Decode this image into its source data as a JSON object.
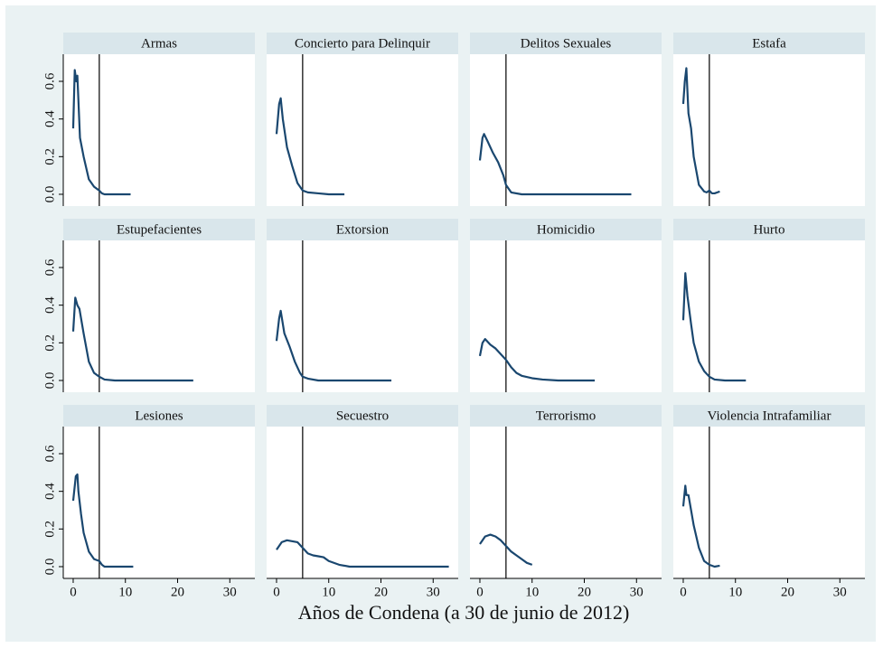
{
  "chart_data": {
    "type": "line",
    "xlabel": "Años de Condena (a 30 de junio de 2012)",
    "xlim": [
      -1.9,
      34.8
    ],
    "ylim": [
      -0.0625,
      0.744
    ],
    "xticks": [
      0,
      10,
      20,
      30
    ],
    "yticks": [
      {
        "value": 0,
        "label": "0.0"
      },
      0.2,
      0.4,
      0.6
    ],
    "reference_line": 5,
    "color": "#1a476f",
    "panels": [
      {
        "title": "Armas",
        "x": [
          0,
          0.3,
          0.6,
          0.8,
          1,
          1.3,
          2,
          3,
          4,
          5,
          5.5,
          6,
          8,
          11
        ],
        "values": [
          0.35,
          0.66,
          0.6,
          0.63,
          0.5,
          0.3,
          0.2,
          0.08,
          0.04,
          0.02,
          0.005,
          0,
          0,
          0
        ]
      },
      {
        "title": "Concierto para Delinquir",
        "x": [
          0,
          0.5,
          0.8,
          1.2,
          2,
          3,
          4,
          5,
          6,
          8,
          10,
          13
        ],
        "values": [
          0.32,
          0.48,
          0.51,
          0.4,
          0.25,
          0.15,
          0.06,
          0.02,
          0.01,
          0.005,
          0,
          0
        ]
      },
      {
        "title": "Delitos Sexuales",
        "x": [
          0,
          0.5,
          0.8,
          1.5,
          2.5,
          3.5,
          4.5,
          5,
          6,
          8,
          15,
          29
        ],
        "values": [
          0.18,
          0.3,
          0.32,
          0.28,
          0.22,
          0.17,
          0.1,
          0.05,
          0.01,
          0,
          0,
          0
        ]
      },
      {
        "title": "Estafa",
        "x": [
          0,
          0.3,
          0.6,
          1,
          1.5,
          2,
          3,
          4,
          4.5,
          5,
          5.5,
          6,
          7
        ],
        "values": [
          0.48,
          0.6,
          0.67,
          0.43,
          0.35,
          0.2,
          0.05,
          0.015,
          0.01,
          0.02,
          0.005,
          0.005,
          0.015
        ]
      },
      {
        "title": "Estupefacientes",
        "x": [
          0,
          0.4,
          0.8,
          1.2,
          2,
          3,
          4,
          5,
          6,
          8,
          15,
          23
        ],
        "values": [
          0.26,
          0.44,
          0.4,
          0.38,
          0.25,
          0.1,
          0.04,
          0.02,
          0.005,
          0,
          0,
          0
        ]
      },
      {
        "title": "Extorsion",
        "x": [
          0,
          0.5,
          0.8,
          1.5,
          2.5,
          3.5,
          4.5,
          5,
          6,
          8,
          15,
          22
        ],
        "values": [
          0.21,
          0.33,
          0.37,
          0.25,
          0.18,
          0.1,
          0.04,
          0.02,
          0.01,
          0,
          0,
          0
        ]
      },
      {
        "title": "Homicidio",
        "x": [
          0,
          0.5,
          1,
          2,
          3,
          4,
          5,
          6,
          7,
          8,
          10,
          12,
          15,
          22
        ],
        "values": [
          0.13,
          0.2,
          0.22,
          0.19,
          0.17,
          0.14,
          0.11,
          0.07,
          0.04,
          0.025,
          0.012,
          0.005,
          0,
          0
        ]
      },
      {
        "title": "Hurto",
        "x": [
          0,
          0.4,
          0.8,
          1.5,
          2,
          3,
          4,
          5,
          6,
          8,
          12
        ],
        "values": [
          0.32,
          0.57,
          0.45,
          0.3,
          0.2,
          0.1,
          0.05,
          0.02,
          0.005,
          0,
          0
        ]
      },
      {
        "title": "Lesiones",
        "x": [
          0,
          0.5,
          0.8,
          1,
          1.5,
          2,
          3,
          4,
          5,
          5.5,
          6,
          8,
          11.5
        ],
        "values": [
          0.35,
          0.48,
          0.49,
          0.4,
          0.28,
          0.18,
          0.08,
          0.04,
          0.03,
          0.01,
          0,
          0,
          0
        ]
      },
      {
        "title": "Secuestro",
        "x": [
          0,
          1,
          2,
          4,
          5,
          6,
          7,
          8,
          9,
          10,
          12,
          14,
          20,
          33
        ],
        "values": [
          0.09,
          0.13,
          0.14,
          0.13,
          0.1,
          0.07,
          0.06,
          0.055,
          0.05,
          0.03,
          0.01,
          0,
          0,
          0
        ]
      },
      {
        "title": "Terrorismo",
        "x": [
          0,
          1,
          2,
          3,
          4,
          5,
          6,
          7,
          8,
          9,
          10
        ],
        "values": [
          0.12,
          0.16,
          0.17,
          0.16,
          0.14,
          0.11,
          0.08,
          0.06,
          0.04,
          0.02,
          0.01
        ]
      },
      {
        "title": "Violencia Intrafamiliar",
        "x": [
          0,
          0.4,
          0.6,
          1,
          1.5,
          2,
          3,
          4,
          5,
          6,
          7
        ],
        "values": [
          0.32,
          0.43,
          0.38,
          0.38,
          0.3,
          0.22,
          0.1,
          0.03,
          0.01,
          0,
          0.005
        ]
      }
    ]
  }
}
